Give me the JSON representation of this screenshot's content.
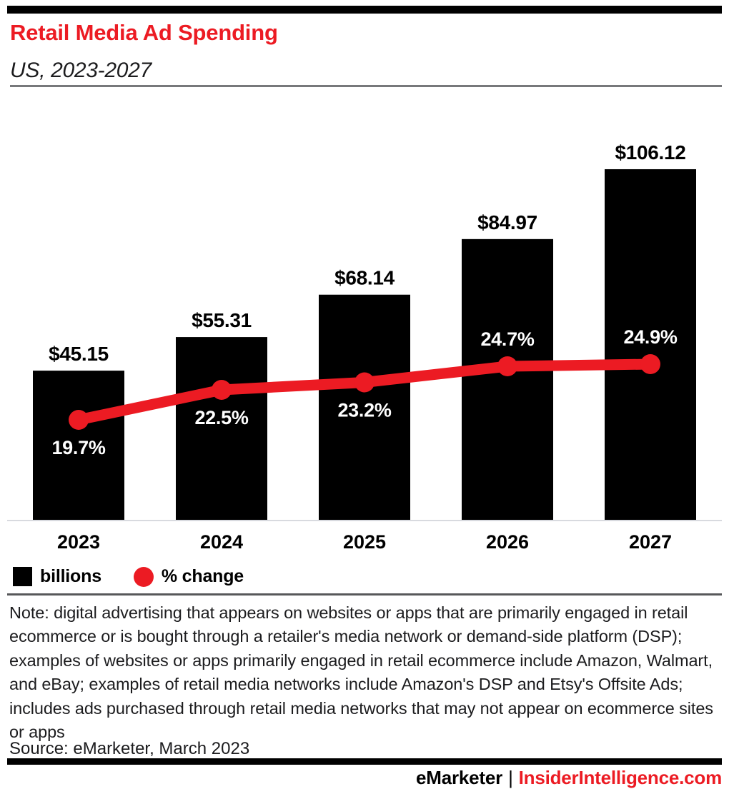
{
  "header": {
    "title": "Retail Media Ad Spending",
    "subtitle": "US, 2023-2027"
  },
  "chart_data": {
    "type": "bar",
    "title": "Retail Media Ad Spending",
    "subtitle": "US, 2023-2027",
    "categories": [
      "2023",
      "2024",
      "2025",
      "2026",
      "2027"
    ],
    "series": [
      {
        "name": "billions",
        "type": "bar",
        "values": [
          45.15,
          55.31,
          68.14,
          84.97,
          106.12
        ],
        "labels": [
          "$45.15",
          "$55.31",
          "$68.14",
          "$84.97",
          "$106.12"
        ],
        "color": "#000000",
        "label_color": "#000000"
      },
      {
        "name": "% change",
        "type": "line",
        "values": [
          19.7,
          22.5,
          23.2,
          24.7,
          24.9
        ],
        "labels": [
          "19.7%",
          "22.5%",
          "23.2%",
          "24.7%",
          "24.9%"
        ],
        "label_positions": [
          "below",
          "below",
          "below",
          "above",
          "above"
        ],
        "color": "#EC1B23",
        "label_color": "#ffffff"
      }
    ],
    "bar_axis": {
      "min": 0,
      "max": 127,
      "visible": false
    },
    "line_axis": {
      "visible": false
    },
    "grid": false,
    "legend": {
      "position": "bottom-left",
      "items": [
        {
          "label": "billions",
          "swatch": "square",
          "color": "#000000"
        },
        {
          "label": "% change",
          "swatch": "circle",
          "color": "#EC1B23"
        }
      ]
    }
  },
  "note": {
    "text": "Note: digital advertising that appears on websites or apps that are primarily engaged in retail ecommerce or is bought through a retailer's media network or demand-side platform (DSP); examples of websites or apps primarily engaged in retail ecommerce include Amazon, Walmart, and eBay; examples of retail media networks include Amazon's DSP and Etsy's Offsite Ads; includes ads purchased through retail media networks that may not appear on ecommerce sites or apps",
    "source": "Source: eMarketer, March 2023"
  },
  "footer": {
    "brand": "eMarketer",
    "separator": "|",
    "site": "InsiderIntelligence.com"
  },
  "colors": {
    "accent_red": "#EC1B23",
    "bar_black": "#000000",
    "baseline_gray": "#d8dadf",
    "rule_gray": "#77787b",
    "rule_dark_gray": "#57585a"
  }
}
